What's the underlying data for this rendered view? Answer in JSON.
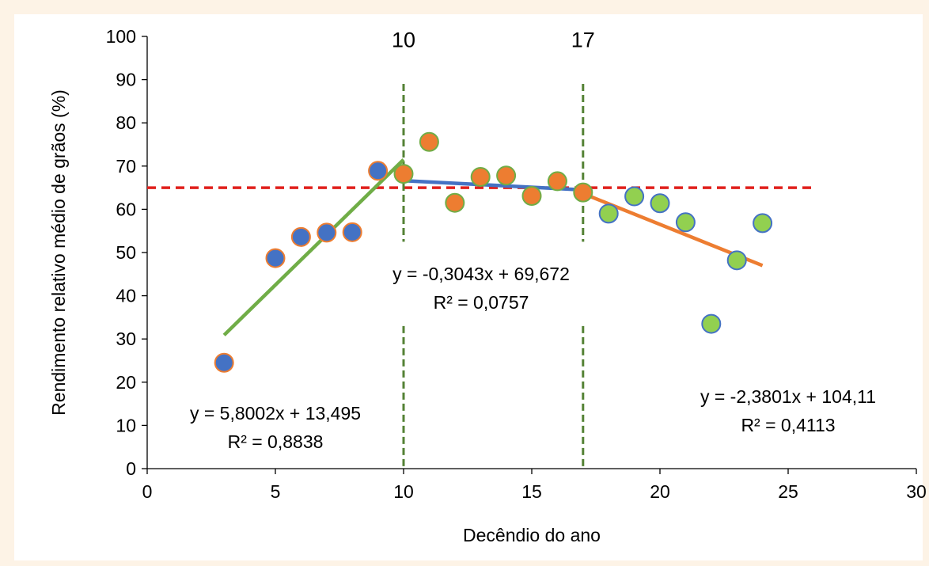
{
  "chart_data": {
    "type": "scatter",
    "xlabel": "Decêndio do ano",
    "ylabel": "Rendimento relativo médio de grãos (%)",
    "xlim": [
      0,
      30
    ],
    "ylim": [
      0,
      100
    ],
    "xticks": [
      0,
      5,
      10,
      15,
      20,
      25,
      30
    ],
    "yticks": [
      0,
      10,
      20,
      30,
      40,
      50,
      60,
      70,
      80,
      90,
      100
    ],
    "grid": false,
    "series": [
      {
        "color": "#4472c4",
        "edge": "#ed7d31",
        "x": [
          3,
          5,
          6,
          7,
          8,
          9
        ],
        "y": [
          24.5,
          48.7,
          53.6,
          54.6,
          54.7,
          68.9
        ]
      },
      {
        "color": "#ed7d31",
        "edge": "#70ad47",
        "x": [
          10,
          11,
          12,
          13,
          14,
          15,
          16,
          17
        ],
        "y": [
          68.2,
          75.6,
          61.5,
          67.5,
          67.8,
          63.1,
          66.5,
          63.9
        ]
      },
      {
        "color": "#92d050",
        "edge": "#4472c4",
        "x": [
          18,
          19,
          20,
          21,
          22,
          23,
          24
        ],
        "y": [
          59.0,
          63.0,
          61.4,
          57.0,
          33.5,
          48.2,
          56.8
        ]
      }
    ],
    "trendlines": [
      {
        "color": "#70ad47",
        "slope": 5.8002,
        "intercept": 13.495,
        "x_range": [
          3,
          10
        ],
        "equation": "y = 5,8002x + 13,495",
        "r2": "R² = 0,8838"
      },
      {
        "color": "#4472c4",
        "slope": -0.3043,
        "intercept": 69.672,
        "x_range": [
          10,
          17
        ],
        "equation": "y = -0,3043x + 69,672",
        "r2": "R² = 0,0757"
      },
      {
        "color": "#ed7d31",
        "slope": -2.3801,
        "intercept": 104.11,
        "x_range": [
          17,
          24
        ],
        "equation": "y = -2,3801x + 104,11",
        "r2": "R² = 0,4113"
      }
    ],
    "reference_lines": {
      "horizontal": {
        "y": 65,
        "x_range": [
          0,
          26
        ],
        "color": "#e0201c",
        "style": "dashed"
      },
      "vertical": [
        {
          "x": 10,
          "label": "10",
          "color": "#548235",
          "style": "dashed"
        },
        {
          "x": 17,
          "label": "17",
          "color": "#548235",
          "style": "dashed"
        }
      ]
    }
  }
}
